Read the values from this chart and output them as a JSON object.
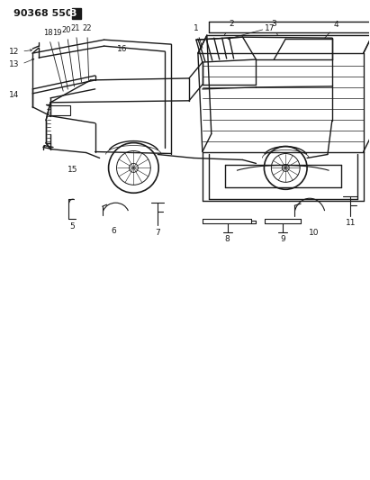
{
  "title_main": "90368 550",
  "title_bold": "B",
  "bg_color": "#ffffff",
  "fig_width": 4.11,
  "fig_height": 5.33,
  "dpi": 100,
  "line_color": "#1a1a1a",
  "label_fontsize": 6.5,
  "title_fontsize": 8.0
}
